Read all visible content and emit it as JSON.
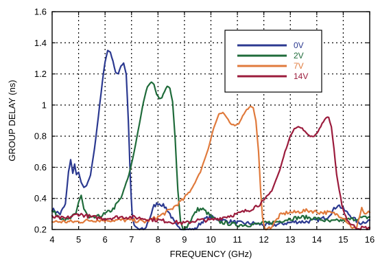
{
  "chart_data": {
    "type": "line",
    "title": "",
    "xlabel": "FREQUENCY (GHz)",
    "ylabel": "GROUP DELAY (ns)",
    "xlim": [
      4,
      16
    ],
    "ylim": [
      0.2,
      1.6
    ],
    "xticks": [
      "4",
      "5",
      "6",
      "7",
      "8",
      "9",
      "10",
      "11",
      "12",
      "13",
      "14",
      "15",
      "16"
    ],
    "yticks": [
      "0.2",
      "0.4",
      "0.6",
      "0.8",
      "1",
      "1.2",
      "1.4",
      "1.6"
    ],
    "grid": true,
    "legend_position": "top-right",
    "series": [
      {
        "name": "0V",
        "color": "#2b3990",
        "x": [
          4.0,
          4.3,
          4.5,
          4.62,
          4.7,
          4.78,
          4.85,
          4.92,
          5.0,
          5.1,
          5.2,
          5.3,
          5.45,
          5.6,
          5.75,
          5.9,
          6.0,
          6.1,
          6.2,
          6.3,
          6.4,
          6.5,
          6.6,
          6.7,
          6.8,
          6.88,
          6.95,
          7.02,
          7.1,
          7.3,
          7.5,
          7.7,
          7.85,
          8.0,
          8.15,
          8.3,
          8.45,
          8.6,
          8.75,
          9.0,
          9.4,
          9.6,
          9.8,
          10.0,
          10.4,
          10.8,
          11.2,
          11.6,
          12.0,
          12.4,
          12.8,
          13.2,
          13.6,
          14.0,
          14.4,
          14.6,
          14.8,
          15.0,
          15.2,
          15.4,
          15.6,
          15.8,
          16.0
        ],
        "y": [
          0.33,
          0.3,
          0.36,
          0.57,
          0.65,
          0.56,
          0.62,
          0.55,
          0.57,
          0.5,
          0.47,
          0.48,
          0.55,
          0.72,
          0.93,
          1.15,
          1.28,
          1.35,
          1.34,
          1.28,
          1.21,
          1.2,
          1.25,
          1.27,
          1.2,
          0.9,
          0.55,
          0.3,
          0.22,
          0.2,
          0.2,
          0.28,
          0.35,
          0.37,
          0.36,
          0.34,
          0.3,
          0.25,
          0.21,
          0.2,
          0.2,
          0.24,
          0.27,
          0.28,
          0.26,
          0.25,
          0.24,
          0.24,
          0.23,
          0.23,
          0.24,
          0.25,
          0.25,
          0.26,
          0.28,
          0.32,
          0.36,
          0.33,
          0.3,
          0.27,
          0.24,
          0.25,
          0.26
        ]
      },
      {
        "name": "2V",
        "color": "#1f6b3a",
        "x": [
          4.0,
          4.3,
          4.6,
          4.9,
          5.0,
          5.1,
          5.2,
          5.4,
          5.7,
          6.0,
          6.3,
          6.6,
          6.9,
          7.1,
          7.3,
          7.45,
          7.6,
          7.75,
          7.85,
          7.95,
          8.05,
          8.15,
          8.25,
          8.35,
          8.45,
          8.55,
          8.65,
          8.75,
          8.85,
          8.95,
          9.1,
          9.3,
          9.5,
          9.7,
          9.9,
          10.1,
          10.3,
          10.6,
          11.0,
          11.5,
          12.0,
          12.5,
          13.0,
          13.5,
          14.0,
          14.5,
          15.0,
          15.5,
          16.0
        ],
        "y": [
          0.32,
          0.28,
          0.26,
          0.3,
          0.38,
          0.42,
          0.33,
          0.27,
          0.28,
          0.3,
          0.33,
          0.4,
          0.55,
          0.7,
          0.88,
          1.02,
          1.12,
          1.15,
          1.13,
          1.07,
          1.04,
          1.05,
          1.09,
          1.12,
          1.11,
          1.02,
          0.78,
          0.45,
          0.25,
          0.2,
          0.22,
          0.28,
          0.33,
          0.33,
          0.3,
          0.27,
          0.25,
          0.24,
          0.23,
          0.23,
          0.24,
          0.25,
          0.27,
          0.28,
          0.27,
          0.25,
          0.26,
          0.27,
          0.28
        ]
      },
      {
        "name": "7V",
        "color": "#e07a3c",
        "x": [
          4.0,
          4.5,
          5.0,
          5.5,
          6.0,
          6.5,
          7.0,
          7.5,
          8.0,
          8.5,
          9.0,
          9.3,
          9.6,
          9.9,
          10.1,
          10.3,
          10.45,
          10.6,
          10.75,
          10.9,
          11.05,
          11.2,
          11.35,
          11.5,
          11.6,
          11.7,
          11.8,
          11.88,
          11.95,
          12.02,
          12.1,
          12.3,
          12.6,
          12.9,
          13.2,
          13.5,
          13.8,
          14.1,
          14.4,
          14.7,
          15.0,
          15.3,
          15.5,
          15.6,
          15.7,
          15.8,
          16.0
        ],
        "y": [
          0.25,
          0.25,
          0.25,
          0.26,
          0.26,
          0.26,
          0.26,
          0.25,
          0.28,
          0.33,
          0.4,
          0.47,
          0.57,
          0.72,
          0.85,
          0.94,
          0.95,
          0.92,
          0.88,
          0.87,
          0.88,
          0.93,
          0.97,
          0.99,
          0.98,
          0.9,
          0.7,
          0.45,
          0.27,
          0.21,
          0.2,
          0.22,
          0.29,
          0.31,
          0.31,
          0.32,
          0.32,
          0.31,
          0.31,
          0.3,
          0.28,
          0.22,
          0.2,
          0.28,
          0.34,
          0.3,
          0.31
        ]
      },
      {
        "name": "14V",
        "color": "#9b1b3c",
        "x": [
          4.0,
          4.5,
          5.0,
          5.5,
          6.0,
          6.5,
          7.0,
          7.5,
          8.0,
          8.5,
          9.0,
          9.5,
          10.0,
          10.5,
          11.0,
          11.5,
          12.0,
          12.3,
          12.6,
          12.8,
          13.0,
          13.15,
          13.3,
          13.45,
          13.6,
          13.75,
          13.9,
          14.05,
          14.2,
          14.35,
          14.45,
          14.55,
          14.65,
          14.75,
          14.9,
          15.05,
          15.2,
          15.4,
          15.6,
          16.0
        ],
        "y": [
          0.28,
          0.27,
          0.3,
          0.28,
          0.27,
          0.28,
          0.28,
          0.27,
          0.26,
          0.25,
          0.24,
          0.26,
          0.26,
          0.28,
          0.3,
          0.33,
          0.38,
          0.45,
          0.58,
          0.7,
          0.8,
          0.85,
          0.86,
          0.85,
          0.82,
          0.8,
          0.8,
          0.83,
          0.88,
          0.92,
          0.92,
          0.86,
          0.72,
          0.55,
          0.4,
          0.3,
          0.25,
          0.22,
          0.21,
          0.21
        ]
      }
    ]
  }
}
